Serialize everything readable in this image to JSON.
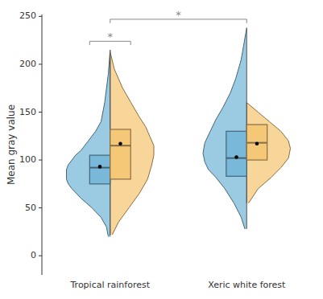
{
  "chart_data": {
    "type": "split_violin",
    "categories": [
      "Tropical rainforest",
      "Xeric white forest"
    ],
    "y_label": "Mean gray value",
    "ylim": [
      -20,
      252
    ],
    "yticks": [
      0,
      50,
      100,
      150,
      200,
      250
    ],
    "grid": false,
    "series": [
      {
        "color": "#7ab8d9",
        "values": [
          {
            "q1": 75,
            "median": 92,
            "q3": 105,
            "mean": 93,
            "whisker_lo": 20,
            "whisker_hi": 215,
            "kde_y": [
              20,
              30,
              40,
              50,
              60,
              70,
              75,
              80,
              85,
              90,
              95,
              100,
              105,
              110,
              115,
              120,
              130,
              140,
              160,
              190,
              215
            ],
            "kde_x": [
              0.01,
              0.02,
              0.05,
              0.1,
              0.16,
              0.21,
              0.23,
              0.24,
              0.24,
              0.24,
              0.23,
              0.21,
              0.19,
              0.16,
              0.14,
              0.12,
              0.08,
              0.05,
              0.03,
              0.01,
              0.0
            ]
          },
          {
            "q1": 83,
            "median": 102,
            "q3": 130,
            "mean": 103,
            "whisker_lo": 28,
            "whisker_hi": 238,
            "kde_y": [
              28,
              40,
              55,
              70,
              82,
              90,
              98,
              107,
              118,
              130,
              142,
              155,
              170,
              185,
              205,
              238
            ],
            "kde_x": [
              0.01,
              0.03,
              0.07,
              0.12,
              0.17,
              0.21,
              0.23,
              0.24,
              0.23,
              0.2,
              0.17,
              0.13,
              0.09,
              0.06,
              0.03,
              0.0
            ]
          }
        ]
      },
      {
        "color": "#f5c878",
        "values": [
          {
            "q1": 80,
            "median": 115,
            "q3": 132,
            "mean": 117,
            "whisker_lo": 22,
            "whisker_hi": 213,
            "kde_y": [
              22,
              35,
              50,
              65,
              80,
              95,
              105,
              115,
              125,
              135,
              145,
              160,
              175,
              195,
              213
            ],
            "kde_x": [
              0.01,
              0.04,
              0.09,
              0.14,
              0.18,
              0.2,
              0.21,
              0.21,
              0.19,
              0.17,
              0.14,
              0.1,
              0.06,
              0.02,
              0.0
            ]
          },
          {
            "q1": 100,
            "median": 118,
            "q3": 137,
            "mean": 117,
            "whisker_lo": 55,
            "whisker_hi": 160,
            "kde_y": [
              55,
              70,
              82,
              92,
              102,
              112,
              120,
              130,
              140,
              150,
              160
            ],
            "kde_x": [
              0.01,
              0.06,
              0.13,
              0.18,
              0.22,
              0.23,
              0.22,
              0.18,
              0.12,
              0.06,
              0.0
            ]
          }
        ]
      }
    ],
    "annotations": [
      {
        "text": "*",
        "y": 224,
        "category": "Tropical rainforest"
      },
      {
        "text": "*",
        "y": 247,
        "from": "Tropical rainforest",
        "to": "Xeric white forest"
      }
    ]
  }
}
